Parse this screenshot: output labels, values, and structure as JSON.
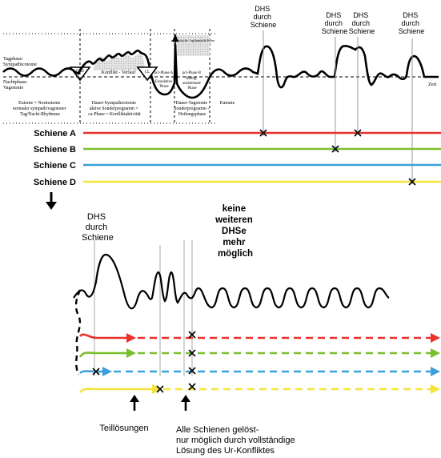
{
  "upper_left": {
    "tagphase": [
      "Tagphase:",
      "Sympathicotonie"
    ],
    "nachtphase": [
      "Nachtphase:",
      "Vagotonie"
    ],
    "dhs_marker": "DHS",
    "konflikt_verlauf": "Konflikt - Verlauf",
    "cl_marker": "CL",
    "epi_krise": "epileptische / epileptoide Krise",
    "pcl_a": [
      "pcl-Phase A",
      "Exsudative",
      "Phase"
    ],
    "pcl_b": [
      "pcl-Phase B",
      "Narbig-",
      "ausheilende",
      "Phase"
    ],
    "zeit": "Zeit",
    "eutonie_left": [
      "Eutonie = Normotonie",
      "normaler sympath/vagotoner",
      "Tag/Nacht-Rhythmus"
    ],
    "dauer_sympath": [
      "Dauer-Sympathicotonie",
      "aktive Sonderprogramm =",
      "ca-Phase = Konfliktaktivität"
    ],
    "dauer_vagotonie": [
      "Dauer-Vagotonie",
      "Sonderprogramm -",
      "Heilungsphase"
    ],
    "eutonie_right": "Eutonie"
  },
  "top_dhs_labels": [
    [
      "DHS",
      "durch",
      "Schiene"
    ],
    [
      "DHS",
      "durch",
      "Schiene"
    ],
    [
      "DHS",
      "durch",
      "Schiene"
    ],
    [
      "DHS",
      "durch",
      "Schiene"
    ]
  ],
  "rails": [
    {
      "label": "Schiene A",
      "color": "#e8322d"
    },
    {
      "label": "Schiene B",
      "color": "#7cbf2e"
    },
    {
      "label": "Schiene C",
      "color": "#3a9fdc"
    },
    {
      "label": "Schiene D",
      "color": "#f4e43a"
    }
  ],
  "lower": {
    "dhs_label": [
      "DHS",
      "durch",
      "Schiene"
    ],
    "keine_label": [
      "keine",
      "weiteren",
      "DHSe",
      "mehr",
      "möglich"
    ],
    "teilloesungen": "Teillösungen",
    "alle_schienen": [
      "Alle Schienen gelöst-",
      "nur möglich durch vollständige",
      "Lösung des Ur-Konfliktes"
    ]
  }
}
